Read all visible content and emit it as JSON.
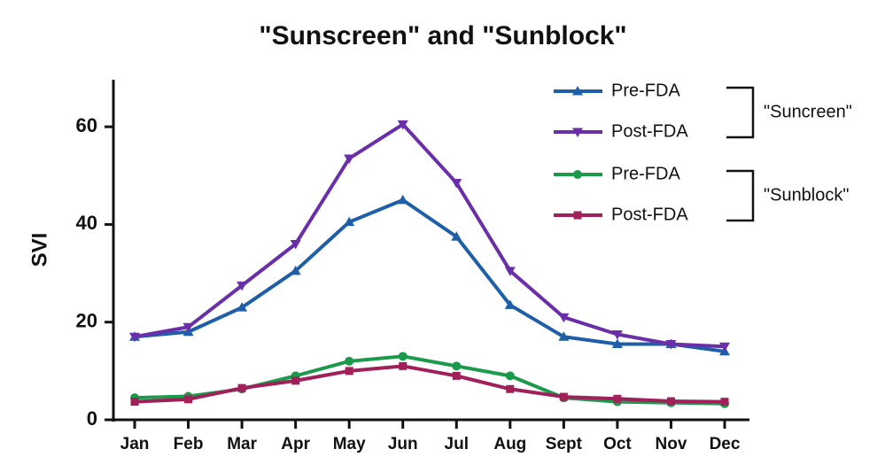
{
  "chart_data": {
    "type": "line",
    "title": "\"Sunscreen\" and \"Sunblock\"",
    "y_label": "SVI",
    "categories": [
      "Jan",
      "Feb",
      "Mar",
      "Apr",
      "May",
      "Jun",
      "Jul",
      "Aug",
      "Sept",
      "Oct",
      "Nov",
      "Dec"
    ],
    "series": [
      {
        "name": "Pre-FDA",
        "color": "#1f5fa8",
        "marker": "triangle-up",
        "values": [
          17,
          18,
          23,
          30.5,
          40.5,
          45,
          37.5,
          23.5,
          17,
          15.5,
          15.5,
          14
        ]
      },
      {
        "name": "Post-FDA",
        "color": "#6a2fa8",
        "marker": "triangle-down",
        "values": [
          17,
          19,
          27.5,
          36,
          53.5,
          60.5,
          48.5,
          30.5,
          21,
          17.5,
          15.5,
          15
        ]
      },
      {
        "name": "Pre-FDA",
        "color": "#1a9a4a",
        "marker": "circle",
        "values": [
          4.5,
          4.8,
          6.3,
          9,
          12,
          13,
          11,
          9,
          4.5,
          3.7,
          3.5,
          3.3
        ]
      },
      {
        "name": "Post-FDA",
        "color": "#a0205a",
        "marker": "square",
        "values": [
          3.7,
          4.2,
          6.5,
          8,
          10,
          11,
          9,
          6.3,
          4.7,
          4.3,
          3.8,
          3.7
        ]
      }
    ],
    "legend_groups": [
      "\"Suncreen\"",
      "\"Sunblock\""
    ],
    "ylim": [
      0,
      70
    ],
    "yticks": [
      0,
      20,
      40,
      60
    ],
    "grid": false
  }
}
